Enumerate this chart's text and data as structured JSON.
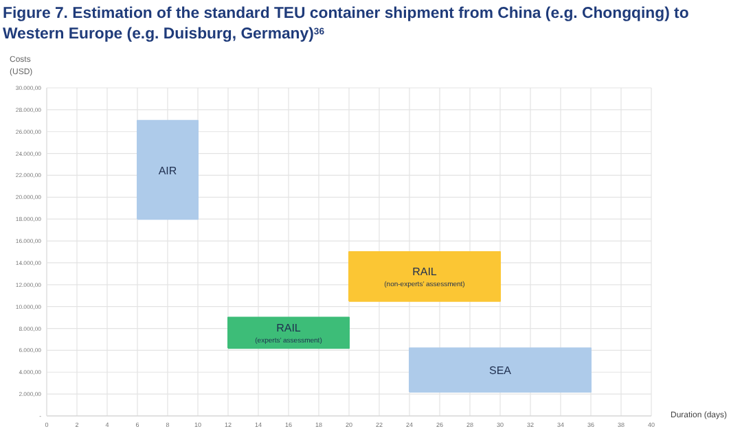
{
  "chart_data": {
    "type": "area",
    "title": "Figure 7. Estimation of the standard TEU container shipment from China (e.g. Chongqing) to Western Europe (e.g. Duisburg, Germany)$^{36}$",
    "xlabel": "Duration (days)",
    "ylabel": "Costs (USD)",
    "xlim": [
      0,
      40
    ],
    "xticks": [
      0,
      2,
      4,
      6,
      8,
      10,
      12,
      14,
      16,
      18,
      20,
      22,
      24,
      26,
      28,
      30,
      32,
      34,
      36,
      38,
      40
    ],
    "ylim": [
      0,
      30000
    ],
    "yticks": [
      {
        "value": 0,
        "label": "-"
      },
      {
        "value": 2000,
        "label": "2.000,00"
      },
      {
        "value": 4000,
        "label": "4.000,00"
      },
      {
        "value": 6000,
        "label": "6.000,00"
      },
      {
        "value": 8000,
        "label": "8.000,00"
      },
      {
        "value": 10000,
        "label": "10.000,00"
      },
      {
        "value": 12000,
        "label": "12.000,00"
      },
      {
        "value": 14000,
        "label": "14.000,00"
      },
      {
        "value": 16000,
        "label": "16.000,00"
      },
      {
        "value": 18000,
        "label": "18.000,00"
      },
      {
        "value": 20000,
        "label": "20.000,00"
      },
      {
        "value": 22000,
        "label": "22.000,00"
      },
      {
        "value": 24000,
        "label": "24.000,00"
      },
      {
        "value": 26000,
        "label": "26.000,00"
      },
      {
        "value": 28000,
        "label": "28.000,00"
      },
      {
        "value": 30000,
        "label": "30.000,00"
      }
    ],
    "grid": true,
    "series": [
      {
        "name": "AIR",
        "color": "#aecbea",
        "x": [
          6,
          10,
          10,
          6,
          6
        ],
        "values": [
          18000,
          18000,
          27000,
          27000,
          18000
        ]
      },
      {
        "name": "RAIL (non-experts’ assessment)",
        "color": "#fbc634",
        "x": [
          20,
          30,
          30,
          20,
          20
        ],
        "values": [
          10500,
          10500,
          15000,
          15000,
          10500
        ]
      },
      {
        "name": "RAIL (experts’ assessment)",
        "color": "#3dbd78",
        "x": [
          12,
          20,
          20,
          12,
          12
        ],
        "values": [
          6200,
          6200,
          9000,
          9000,
          6200
        ]
      },
      {
        "name": "SEA",
        "color": "#aecbea",
        "x": [
          24,
          36,
          36,
          24,
          24
        ],
        "values": [
          2200,
          2200,
          6200,
          6200,
          2200
        ]
      }
    ]
  }
}
